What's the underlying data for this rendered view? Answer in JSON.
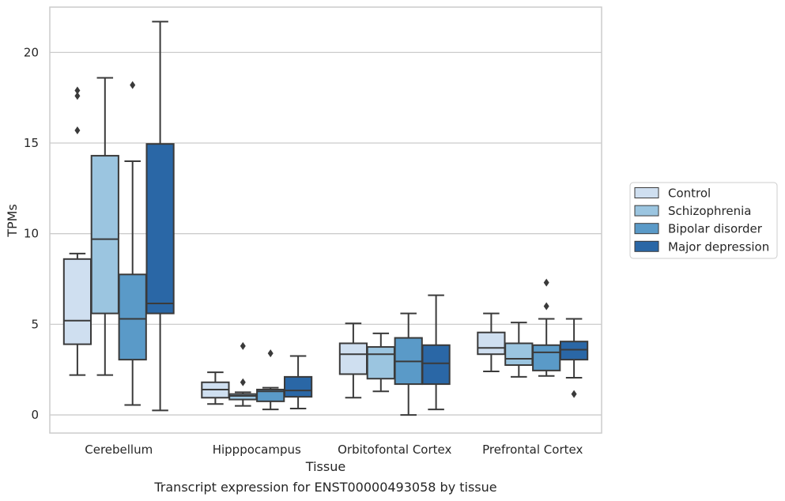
{
  "caption": "Transcript expression for ENST00000493058 by tissue",
  "chart_data": {
    "type": "box",
    "xlabel": "Tissue",
    "ylabel": "TPMs",
    "ylim": [
      -1,
      22.5
    ],
    "yticks": [
      0,
      5,
      10,
      15,
      20
    ],
    "grid": "horizontal",
    "legend_position": "right",
    "categories": [
      "Cerebellum",
      "Hipppocampus",
      "Orbitofontal Cortex",
      "Prefrontal Cortex"
    ],
    "series": [
      {
        "name": "Control",
        "color": "#cfdff0",
        "boxes": [
          {
            "whisker_low": 2.2,
            "q1": 3.9,
            "median": 5.2,
            "q3": 8.6,
            "whisker_high": 8.9,
            "outliers": [
              15.7,
              17.6,
              17.9
            ]
          },
          {
            "whisker_low": 0.6,
            "q1": 0.95,
            "median": 1.4,
            "q3": 1.8,
            "whisker_high": 2.35,
            "outliers": []
          },
          {
            "whisker_low": 0.95,
            "q1": 2.25,
            "median": 3.35,
            "q3": 3.95,
            "whisker_high": 5.05,
            "outliers": []
          },
          {
            "whisker_low": 2.4,
            "q1": 3.35,
            "median": 3.7,
            "q3": 4.55,
            "whisker_high": 5.6,
            "outliers": []
          }
        ]
      },
      {
        "name": "Schizophrenia",
        "color": "#9bc5e0",
        "boxes": [
          {
            "whisker_low": 2.2,
            "q1": 5.6,
            "median": 9.7,
            "q3": 14.3,
            "whisker_high": 18.6,
            "outliers": []
          },
          {
            "whisker_low": 0.5,
            "q1": 0.85,
            "median": 1.05,
            "q3": 1.15,
            "whisker_high": 1.25,
            "outliers": [
              1.8,
              3.8
            ]
          },
          {
            "whisker_low": 1.3,
            "q1": 2.0,
            "median": 3.35,
            "q3": 3.75,
            "whisker_high": 4.5,
            "outliers": []
          },
          {
            "whisker_low": 2.1,
            "q1": 2.75,
            "median": 3.1,
            "q3": 3.95,
            "whisker_high": 5.1,
            "outliers": []
          }
        ]
      },
      {
        "name": "Bipolar disorder",
        "color": "#5a9ac8",
        "boxes": [
          {
            "whisker_low": 0.55,
            "q1": 3.05,
            "median": 5.3,
            "q3": 7.75,
            "whisker_high": 14.0,
            "outliers": [
              18.2
            ]
          },
          {
            "whisker_low": 0.3,
            "q1": 0.75,
            "median": 1.3,
            "q3": 1.4,
            "whisker_high": 1.5,
            "outliers": [
              3.4
            ]
          },
          {
            "whisker_low": 0.0,
            "q1": 1.7,
            "median": 2.95,
            "q3": 4.25,
            "whisker_high": 5.6,
            "outliers": []
          },
          {
            "whisker_low": 2.15,
            "q1": 2.45,
            "median": 3.45,
            "q3": 3.85,
            "whisker_high": 5.3,
            "outliers": [
              6.0,
              7.3
            ]
          }
        ]
      },
      {
        "name": "Major depression",
        "color": "#2a67a6",
        "boxes": [
          {
            "whisker_low": 0.25,
            "q1": 5.6,
            "median": 6.15,
            "q3": 14.95,
            "whisker_high": 21.7,
            "outliers": []
          },
          {
            "whisker_low": 0.35,
            "q1": 1.0,
            "median": 1.35,
            "q3": 2.1,
            "whisker_high": 3.25,
            "outliers": []
          },
          {
            "whisker_low": 0.3,
            "q1": 1.7,
            "median": 2.85,
            "q3": 3.85,
            "whisker_high": 6.6,
            "outliers": []
          },
          {
            "whisker_low": 2.05,
            "q1": 3.05,
            "median": 3.6,
            "q3": 4.05,
            "whisker_high": 5.3,
            "outliers": [
              1.15
            ]
          }
        ]
      }
    ]
  }
}
